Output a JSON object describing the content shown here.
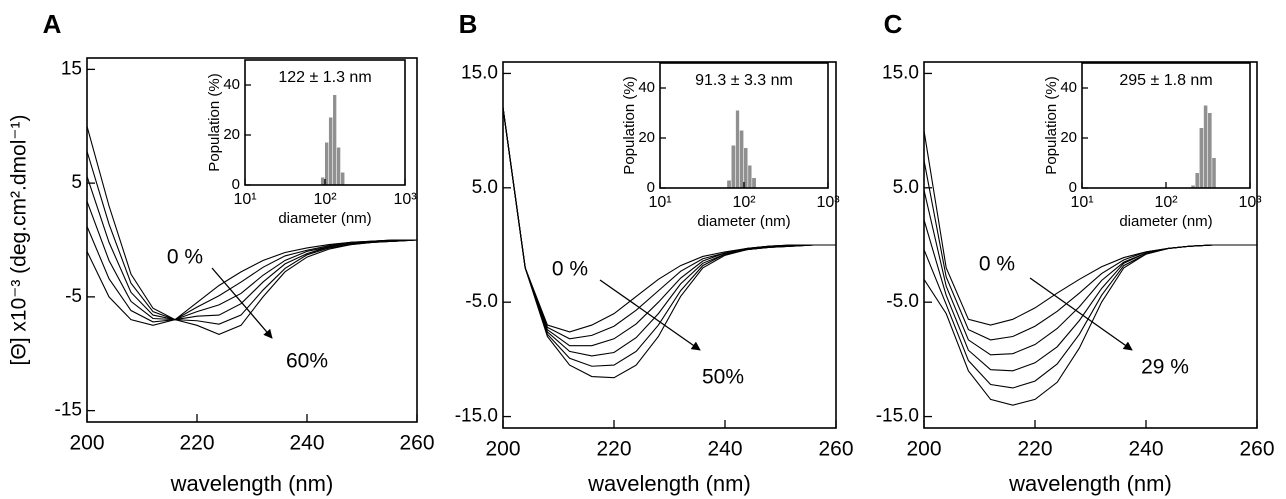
{
  "chart_data": [
    {
      "panel": "A",
      "type": "line",
      "ylabel": "[Θ] x10⁻³ (deg.cm².dmol⁻¹)",
      "xlabel": "wavelength (nm)",
      "x": [
        200,
        204,
        208,
        212,
        216,
        220,
        224,
        228,
        232,
        236,
        240,
        244,
        248,
        252,
        256,
        260
      ],
      "xlim": [
        200,
        260
      ],
      "xticks": [
        200,
        220,
        240,
        260
      ],
      "ylim": [
        -16,
        16
      ],
      "yticks": [
        15,
        5,
        -5,
        -15
      ],
      "series": [
        {
          "color": "#000000",
          "values": [
            -1,
            -5,
            -7,
            -7.5,
            -7,
            -5.5,
            -4,
            -2.8,
            -1.8,
            -1.1,
            -0.7,
            -0.4,
            -0.2,
            -0.1,
            0,
            0
          ]
        },
        {
          "color": "#000000",
          "values": [
            1.2,
            -3.4,
            -6.2,
            -7.2,
            -7,
            -5.9,
            -4.9,
            -3.7,
            -2.4,
            -1.4,
            -0.9,
            -0.5,
            -0.2,
            -0.1,
            0,
            0
          ]
        },
        {
          "color": "#000000",
          "values": [
            3.4,
            -1.8,
            -5.4,
            -6.9,
            -7,
            -6.3,
            -5.7,
            -4.7,
            -3.1,
            -1.8,
            -1,
            -0.6,
            -0.3,
            -0.1,
            0,
            0
          ]
        },
        {
          "color": "#000000",
          "values": [
            5.6,
            -0.2,
            -4.6,
            -6.6,
            -7,
            -6.7,
            -6.6,
            -5.6,
            -3.7,
            -2.1,
            -1.2,
            -0.6,
            -0.3,
            -0.2,
            -0.1,
            0
          ]
        },
        {
          "color": "#000000",
          "values": [
            7.8,
            1.4,
            -3.8,
            -6.3,
            -7,
            -7.1,
            -7.4,
            -6.6,
            -4.4,
            -2.5,
            -1.3,
            -0.7,
            -0.4,
            -0.2,
            -0.1,
            0
          ]
        },
        {
          "color": "#000000",
          "values": [
            10,
            3,
            -3,
            -6,
            -7,
            -7.5,
            -8.3,
            -7.5,
            -5,
            -2.8,
            -1.5,
            -0.8,
            -0.4,
            -0.2,
            -0.1,
            0
          ]
        }
      ],
      "annotations": [
        "0 %",
        "60%"
      ],
      "inset": {
        "type": "histogram",
        "annotation": "122 ± 1.3 nm",
        "xlabel": "diameter (nm)",
        "ylabel": "Population (%)",
        "log_x": true,
        "xlim": [
          10,
          1000
        ],
        "xticks": [
          {
            "value": 10,
            "label": "10¹"
          },
          {
            "value": 100,
            "label": "10²"
          },
          {
            "value": 1000,
            "label": "10³"
          }
        ],
        "ylim": [
          0,
          50
        ],
        "yticks": [
          0,
          20,
          40
        ],
        "color": "#909090",
        "bins": [
          89,
          100,
          112,
          126,
          141,
          158,
          178
        ],
        "counts": [
          3,
          17,
          27,
          36,
          15,
          5
        ]
      }
    },
    {
      "panel": "B",
      "type": "line",
      "xlabel": "wavelength (nm)",
      "x": [
        200,
        204,
        208,
        212,
        216,
        220,
        224,
        228,
        232,
        236,
        240,
        244,
        248,
        252,
        256,
        260
      ],
      "xlim": [
        200,
        260
      ],
      "xticks": [
        200,
        220,
        240,
        260
      ],
      "ylim": [
        -16,
        16
      ],
      "yticks": [
        {
          "value": 15,
          "label": "15.0"
        },
        {
          "value": 5,
          "label": "5.0"
        },
        {
          "value": -5,
          "label": "-5.0"
        },
        {
          "value": -15,
          "label": "-15.0"
        }
      ],
      "series": [
        {
          "color": "#000000",
          "values": [
            12,
            -2,
            -7,
            -7.6,
            -7,
            -6,
            -4.5,
            -3,
            -1.8,
            -1,
            -0.6,
            -0.3,
            -0.1,
            0,
            0,
            0
          ]
        },
        {
          "color": "#000000",
          "values": [
            12,
            -2,
            -7.2,
            -8.2,
            -7.9,
            -7.1,
            -5.7,
            -4,
            -2.3,
            -1.2,
            -0.7,
            -0.3,
            -0.1,
            0,
            0,
            0
          ]
        },
        {
          "color": "#000000",
          "values": [
            12,
            -2,
            -7.4,
            -8.8,
            -8.8,
            -8.2,
            -6.9,
            -5,
            -2.9,
            -1.4,
            -0.7,
            -0.3,
            -0.1,
            0,
            0,
            0
          ]
        },
        {
          "color": "#000000",
          "values": [
            12,
            -2,
            -7.6,
            -9.3,
            -9.7,
            -9.4,
            -8.1,
            -6,
            -3.4,
            -1.6,
            -0.8,
            -0.4,
            -0.2,
            -0.1,
            0,
            0
          ]
        },
        {
          "color": "#000000",
          "values": [
            12,
            -2,
            -7.8,
            -9.9,
            -10.6,
            -10.5,
            -9.3,
            -7,
            -4,
            -1.8,
            -0.8,
            -0.4,
            -0.2,
            -0.1,
            0,
            0
          ]
        },
        {
          "color": "#000000",
          "values": [
            12,
            -2,
            -8,
            -10.5,
            -11.5,
            -11.6,
            -10.5,
            -8,
            -4.5,
            -2,
            -0.9,
            -0.4,
            -0.2,
            -0.1,
            0,
            0
          ]
        }
      ],
      "annotations": [
        "0 %",
        "50%"
      ],
      "inset": {
        "type": "histogram",
        "annotation": "91.3  ± 3.3 nm",
        "xlabel": "diameter (nm)",
        "ylabel": "Population (%)",
        "log_x": true,
        "xlim": [
          10,
          1000
        ],
        "xticks": [
          {
            "value": 10,
            "label": "10¹"
          },
          {
            "value": 100,
            "label": "10²"
          },
          {
            "value": 1000,
            "label": "10³"
          }
        ],
        "ylim": [
          0,
          50
        ],
        "yticks": [
          0,
          20,
          40
        ],
        "color": "#909090",
        "bins": [
          63,
          71,
          80,
          89,
          100,
          112,
          125,
          141
        ],
        "counts": [
          3,
          17,
          31,
          23,
          16,
          9,
          4
        ]
      }
    },
    {
      "panel": "C",
      "type": "line",
      "xlabel": "wavelength (nm)",
      "x": [
        200,
        204,
        208,
        212,
        216,
        220,
        224,
        228,
        232,
        236,
        240,
        244,
        248,
        252,
        256,
        260
      ],
      "xlim": [
        200,
        260
      ],
      "xticks": [
        200,
        220,
        240,
        260
      ],
      "ylim": [
        -16,
        16
      ],
      "yticks": [
        {
          "value": 15,
          "label": "15.0"
        },
        {
          "value": 5,
          "label": "5.0"
        },
        {
          "value": -5,
          "label": "-5.0"
        },
        {
          "value": -15,
          "label": "-15.0"
        }
      ],
      "series": [
        {
          "color": "#000000",
          "values": [
            10,
            -2,
            -6.5,
            -7,
            -6.5,
            -5.5,
            -4.2,
            -3,
            -1.9,
            -1.1,
            -0.6,
            -0.3,
            -0.1,
            0,
            0,
            0
          ]
        },
        {
          "color": "#000000",
          "values": [
            7.4,
            -2.8,
            -7.4,
            -8.3,
            -8,
            -7.1,
            -5.8,
            -4.2,
            -2.5,
            -1.3,
            -0.6,
            -0.3,
            -0.1,
            0,
            0,
            0
          ]
        },
        {
          "color": "#000000",
          "values": [
            4.8,
            -3.6,
            -8.3,
            -9.6,
            -9.5,
            -8.7,
            -7.3,
            -5.4,
            -3.1,
            -1.5,
            -0.7,
            -0.3,
            -0.1,
            0,
            0,
            0
          ]
        },
        {
          "color": "#000000",
          "values": [
            2.2,
            -4.4,
            -9.2,
            -10.9,
            -11,
            -10.3,
            -8.9,
            -6.6,
            -3.8,
            -1.6,
            -0.7,
            -0.3,
            -0.1,
            0,
            0,
            0
          ]
        },
        {
          "color": "#000000",
          "values": [
            -0.4,
            -5.2,
            -10.1,
            -12.2,
            -12.5,
            -11.9,
            -10.4,
            -7.8,
            -4.4,
            -1.8,
            -0.8,
            -0.3,
            -0.1,
            0,
            0,
            0
          ]
        },
        {
          "color": "#000000",
          "values": [
            -3,
            -6,
            -11,
            -13.5,
            -14,
            -13.5,
            -12,
            -9,
            -5,
            -2,
            -0.8,
            -0.3,
            -0.1,
            0,
            0,
            0
          ]
        }
      ],
      "annotations": [
        "0 %",
        "29 %"
      ],
      "inset": {
        "type": "histogram",
        "annotation": "295 ± 1.8 nm",
        "xlabel": "diameter (nm)",
        "ylabel": "Population (%)",
        "log_x": true,
        "xlim": [
          10,
          1000
        ],
        "xticks": [
          {
            "value": 10,
            "label": "10¹"
          },
          {
            "value": 100,
            "label": "10²"
          },
          {
            "value": 1000,
            "label": "10³"
          }
        ],
        "ylim": [
          0,
          50
        ],
        "yticks": [
          0,
          20,
          40
        ],
        "color": "#909090",
        "bins": [
          200,
          224,
          251,
          282,
          316,
          355,
          398
        ],
        "counts": [
          1,
          6,
          24,
          33,
          30,
          12
        ]
      }
    }
  ]
}
